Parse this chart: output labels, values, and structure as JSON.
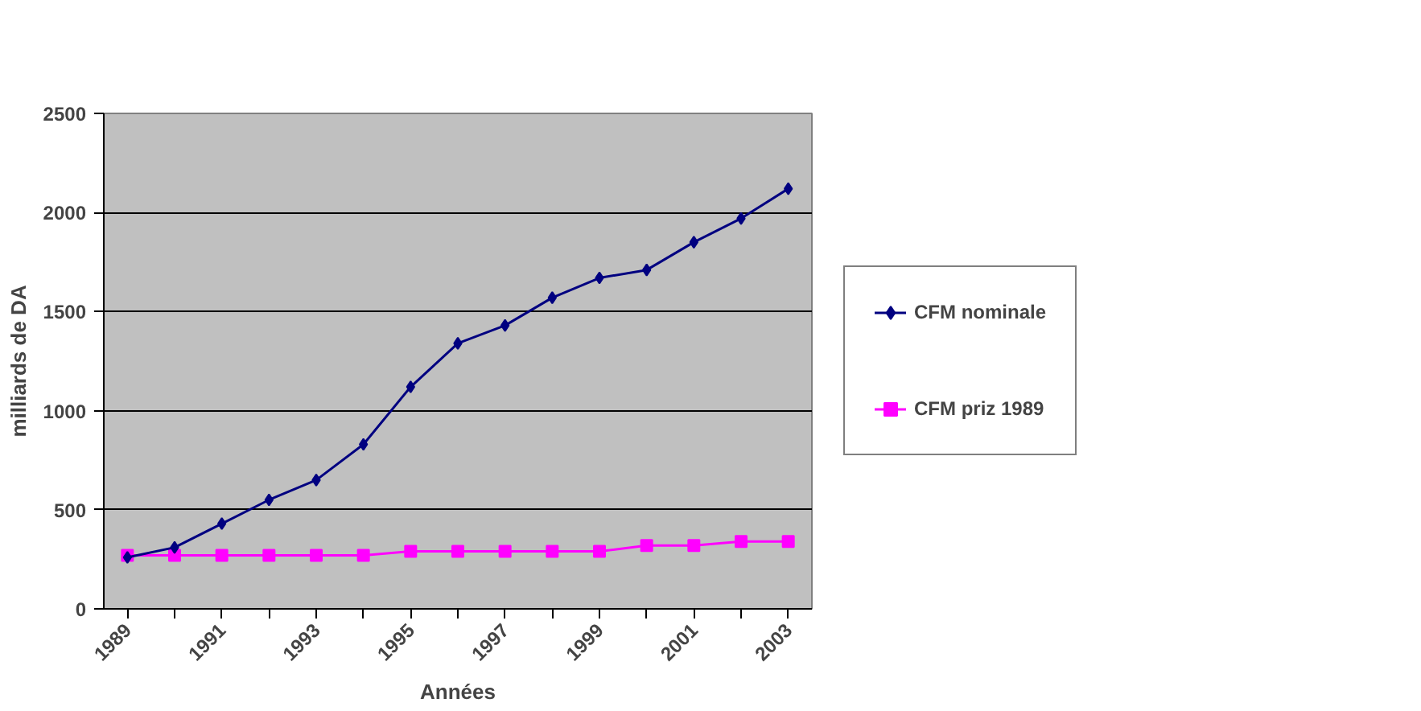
{
  "chart_data": {
    "type": "line",
    "xlabel": "Années",
    "ylabel": "milliards de DA",
    "categories": [
      "1989",
      null,
      "1991",
      null,
      "1993",
      null,
      "1995",
      null,
      "1997",
      null,
      "1999",
      null,
      "2001",
      null,
      "2003"
    ],
    "series": [
      {
        "name": "CFM nominale",
        "color": "#000080",
        "marker": "diamond",
        "values": [
          260,
          310,
          430,
          550,
          650,
          830,
          1120,
          1340,
          1430,
          1570,
          1670,
          1710,
          1850,
          1970,
          2120
        ]
      },
      {
        "name": "CFM priz 1989",
        "color": "#ff00ff",
        "marker": "square",
        "values": [
          270,
          270,
          270,
          270,
          270,
          270,
          290,
          290,
          290,
          290,
          290,
          320,
          320,
          340,
          340
        ]
      }
    ],
    "ylim": [
      0,
      2500
    ],
    "yticks": [
      0,
      500,
      1000,
      1500,
      2000,
      2500
    ],
    "grid": "y",
    "legend": "right"
  }
}
